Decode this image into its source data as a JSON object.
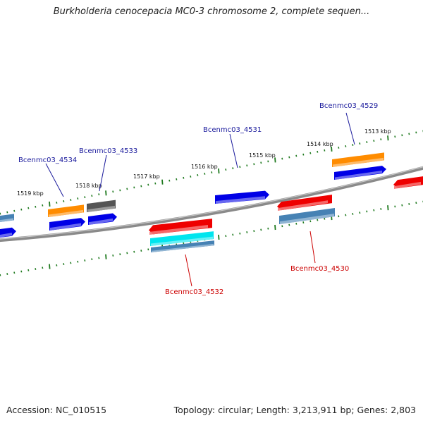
{
  "title": "Burkholderia cenocepacia MC0-3 chromosome 2, complete sequen...",
  "footer": {
    "accession": "Accession: NC_010515",
    "topology": "Topology: circular; Length: 3,213,911 bp; Genes: 2,803"
  },
  "ruler_ticks": [
    "1513 kbp",
    "1514 kbp",
    "1515 kbp",
    "1516 kbp",
    "1517 kbp",
    "1518 kbp",
    "1519 kbp"
  ],
  "gene_labels": {
    "g4529": "Bcenmc03_4529",
    "g4531": "Bcenmc03_4531",
    "g4533": "Bcenmc03_4533",
    "g4534": "Bcenmc03_4534",
    "g4530": "Bcenmc03_4530",
    "g4532": "Bcenmc03_4532"
  },
  "colors": {
    "forward_label": "#1a1a9c",
    "reverse_label": "#cc0000",
    "backbone": "#808080",
    "tick": "#1f7a1f",
    "gene_blue": "#0000e6",
    "gene_orange": "#ff8c00",
    "gene_red": "#ee0000",
    "gene_cyan": "#00e5ee",
    "gene_steelblue": "#4682b4",
    "gene_gray": "#555555"
  }
}
